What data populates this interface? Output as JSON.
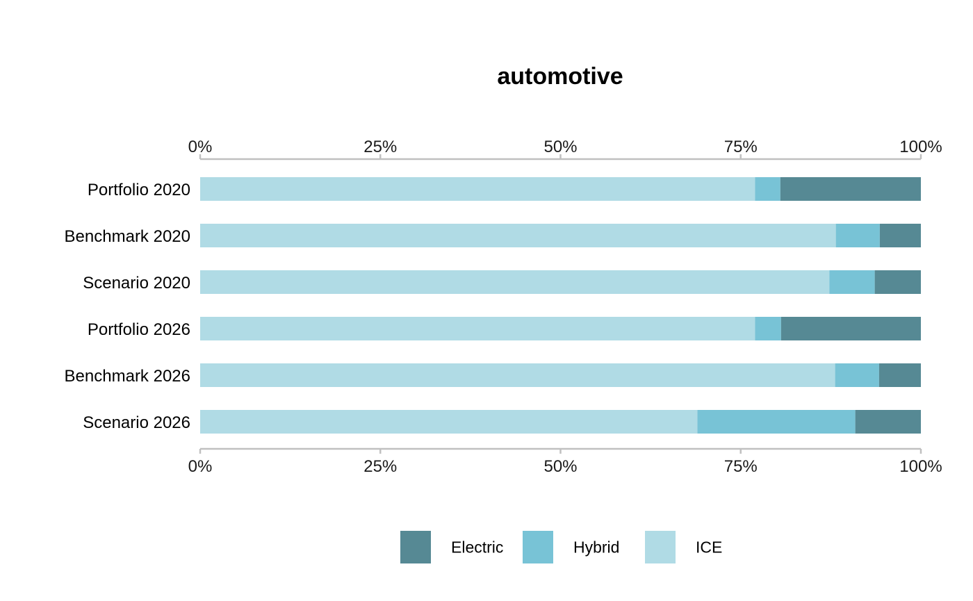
{
  "chart_data": {
    "type": "bar",
    "orientation": "horizontal",
    "stacked": true,
    "normalized": true,
    "title": "automotive",
    "xlabel": "",
    "ylabel": "",
    "xlim": [
      0,
      100
    ],
    "x_ticks": [
      "0%",
      "25%",
      "50%",
      "75%",
      "100%"
    ],
    "x_tick_values": [
      0,
      25,
      50,
      75,
      100
    ],
    "x_axis_positions": [
      "top",
      "bottom"
    ],
    "grid": false,
    "legend_position": "bottom",
    "categories": [
      "Portfolio 2020",
      "Benchmark 2020",
      "Scenario 2020",
      "Portfolio 2026",
      "Benchmark 2026",
      "Scenario 2026"
    ],
    "series": [
      {
        "name": "ICE",
        "color": "#b0dbe5",
        "values": [
          77,
          88.2,
          87.3,
          77,
          88.1,
          69
        ]
      },
      {
        "name": "Hybrid",
        "color": "#78c3d6",
        "values": [
          3.5,
          6.1,
          6.3,
          3.6,
          6.1,
          21.9
        ]
      },
      {
        "name": "Electric",
        "color": "#568994",
        "values": [
          19.5,
          5.7,
          6.4,
          19.4,
          5.8,
          9.1
        ]
      }
    ],
    "legend": [
      {
        "name": "Electric",
        "color": "#568994"
      },
      {
        "name": "Hybrid",
        "color": "#78c3d6"
      },
      {
        "name": "ICE",
        "color": "#b0dbe5"
      }
    ],
    "axis_color": "#c0c0c0"
  }
}
